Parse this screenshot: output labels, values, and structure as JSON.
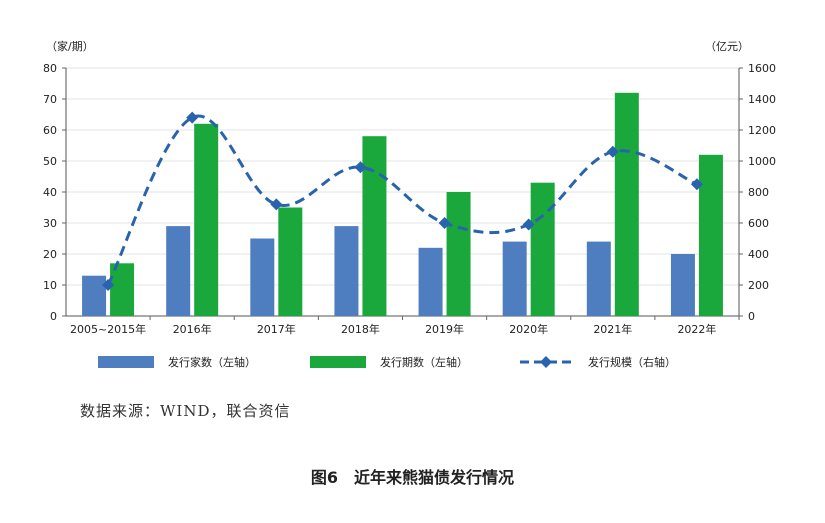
{
  "chart_data": {
    "type": "bar",
    "left_axis_label": "（家/期）",
    "right_axis_label": "（亿元）",
    "categories": [
      "2005~2015年",
      "2016年",
      "2017年",
      "2018年",
      "2019年",
      "2020年",
      "2021年",
      "2022年"
    ],
    "left_ylim": [
      0,
      80
    ],
    "left_yticks": [
      "0",
      "10",
      "20",
      "30",
      "40",
      "50",
      "60",
      "70",
      "80"
    ],
    "right_ylim": [
      0,
      1600
    ],
    "right_yticks": [
      "0",
      "200",
      "400",
      "600",
      "800",
      "1000",
      "1200",
      "1400",
      "1600"
    ],
    "series": [
      {
        "name": "发行家数（左轴）",
        "type": "bar",
        "axis": "left",
        "color": "#4f7ec0",
        "values": [
          13,
          29,
          25,
          29,
          22,
          24,
          24,
          20
        ]
      },
      {
        "name": "发行期数（左轴）",
        "type": "bar",
        "axis": "left",
        "color": "#1aa83c",
        "values": [
          17,
          62,
          35,
          58,
          40,
          43,
          72,
          52
        ]
      },
      {
        "name": "发行规模（右轴）",
        "type": "line",
        "axis": "right",
        "color": "#2a63ad",
        "style": "dashed",
        "marker": "diamond",
        "values": [
          200,
          1280,
          720,
          960,
          600,
          590,
          1060,
          850
        ]
      }
    ],
    "grid": true
  },
  "source_note": "数据来源：WIND，联合资信",
  "figure_title": "图6　近年来熊猫债发行情况"
}
